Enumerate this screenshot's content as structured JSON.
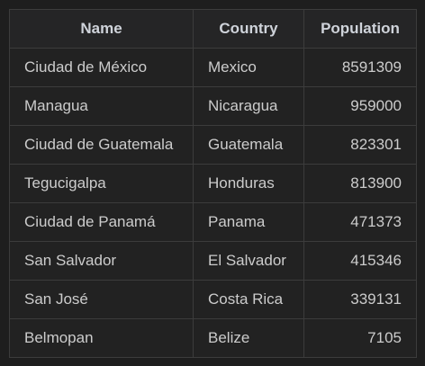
{
  "table": {
    "headers": {
      "name": "Name",
      "country": "Country",
      "population": "Population"
    },
    "rows": [
      {
        "name": "Ciudad de México",
        "country": "Mexico",
        "population": "8591309"
      },
      {
        "name": "Managua",
        "country": "Nicaragua",
        "population": "959000"
      },
      {
        "name": "Ciudad de Guatemala",
        "country": "Guatemala",
        "population": "823301"
      },
      {
        "name": "Tegucigalpa",
        "country": "Honduras",
        "population": "813900"
      },
      {
        "name": "Ciudad de Panamá",
        "country": "Panama",
        "population": "471373"
      },
      {
        "name": "San Salvador",
        "country": "El Salvador",
        "population": "415346"
      },
      {
        "name": "San José",
        "country": "Costa Rica",
        "population": "339131"
      },
      {
        "name": "Belmopan",
        "country": "Belize",
        "population": "7105"
      }
    ]
  },
  "colors": {
    "background": "#1e1e1e",
    "border": "#3c3c3c",
    "header_text": "#cfd3da",
    "cell_text": "#cccccc"
  }
}
